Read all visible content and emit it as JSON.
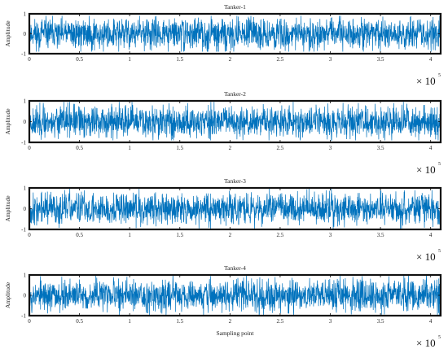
{
  "chart_data": [
    {
      "type": "line",
      "title": "Tanker-1",
      "ylabel": "Amplitude",
      "xlabel": "",
      "xlim": [
        0,
        410000
      ],
      "ylim": [
        -1,
        1
      ],
      "x_ticks": [
        "0",
        "0.5",
        "1",
        "1.5",
        "2",
        "2.5",
        "3",
        "3.5",
        "4"
      ],
      "y_ticks": [
        "1",
        "0",
        "-1"
      ],
      "x_multiplier": "× 10",
      "x_exponent": "5",
      "series": [
        {
          "color": "#0072BD",
          "kind": "noise",
          "amplitude_envelope": [
            -0.9,
            0.9
          ],
          "seed": 11
        }
      ]
    },
    {
      "type": "line",
      "title": "Tanker-2",
      "ylabel": "Amplitude",
      "xlabel": "",
      "xlim": [
        0,
        410000
      ],
      "ylim": [
        -1,
        1
      ],
      "x_ticks": [
        "0",
        "0.5",
        "1",
        "1.5",
        "2",
        "2.5",
        "3",
        "3.5",
        "4"
      ],
      "y_ticks": [
        "1",
        "0",
        "-1"
      ],
      "x_multiplier": "× 10",
      "x_exponent": "5",
      "series": [
        {
          "color": "#0072BD",
          "kind": "noise",
          "amplitude_envelope": [
            -0.9,
            0.95
          ],
          "seed": 23
        }
      ]
    },
    {
      "type": "line",
      "title": "Tanker-3",
      "ylabel": "Amplitude",
      "xlabel": "",
      "xlim": [
        0,
        410000
      ],
      "ylim": [
        -1,
        1
      ],
      "x_ticks": [
        "0",
        "0.5",
        "1",
        "1.5",
        "2",
        "2.5",
        "3",
        "3.5",
        "4"
      ],
      "y_ticks": [
        "1",
        "0",
        "-1"
      ],
      "x_multiplier": "× 10",
      "x_exponent": "5",
      "series": [
        {
          "color": "#0072BD",
          "kind": "noise",
          "amplitude_envelope": [
            -1,
            1
          ],
          "seed": 37
        }
      ]
    },
    {
      "type": "line",
      "title": "Tanker-4",
      "ylabel": "Amplitude",
      "xlabel": "Sampling point",
      "xlim": [
        0,
        410000
      ],
      "ylim": [
        -1,
        1
      ],
      "x_ticks": [
        "0",
        "0.5",
        "1",
        "1.5",
        "2",
        "2.5",
        "3",
        "3.5",
        "4"
      ],
      "y_ticks": [
        "1",
        "0",
        "-1"
      ],
      "x_multiplier": "× 10",
      "x_exponent": "5",
      "series": [
        {
          "color": "#0072BD",
          "kind": "noise",
          "amplitude_envelope": [
            -1,
            1
          ],
          "seed": 53
        }
      ]
    }
  ]
}
